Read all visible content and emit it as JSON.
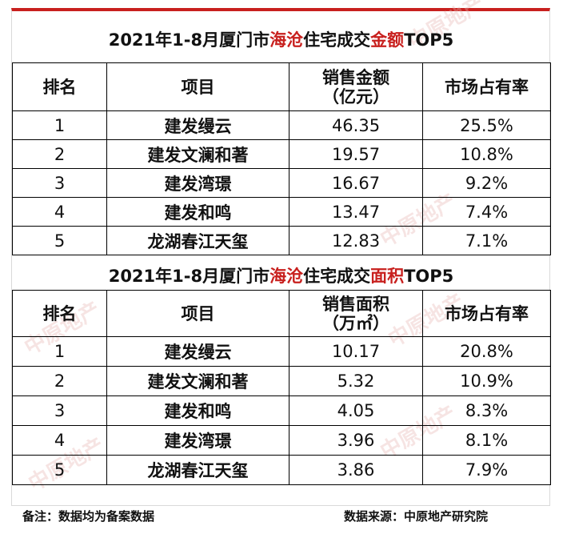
{
  "table1": {
    "title_pre": "2021年1-8月厦门市",
    "title_red1": "海沧",
    "title_mid": "住宅成交",
    "title_red2": "金额",
    "title_post": "TOP5",
    "headers": [
      "排名",
      "项目",
      "销售金额",
      "（亿元）",
      "市场占有率"
    ],
    "rows": [
      {
        "rank": "1",
        "project": "建发缦云",
        "value": "46.35",
        "share": "25.5%"
      },
      {
        "rank": "2",
        "project": "建发文澜和著",
        "value": "19.57",
        "share": "10.8%"
      },
      {
        "rank": "3",
        "project": "建发湾璟",
        "value": "16.67",
        "share": "9.2%"
      },
      {
        "rank": "4",
        "project": "建发和鸣",
        "value": "13.47",
        "share": "7.4%"
      },
      {
        "rank": "5",
        "project": "龙湖春江天玺",
        "value": "12.83",
        "share": "7.1%"
      }
    ]
  },
  "table2": {
    "title_pre": "2021年1-8月厦门市",
    "title_red1": "海沧",
    "title_mid": "住宅成交",
    "title_red2": "面积",
    "title_post": "TOP5",
    "headers": [
      "排名",
      "项目",
      "销售面积",
      "（万㎡）",
      "市场占有率"
    ],
    "rows": [
      {
        "rank": "1",
        "project": "建发缦云",
        "value": "10.17",
        "share": "20.8%"
      },
      {
        "rank": "2",
        "project": "建发文澜和著",
        "value": "5.32",
        "share": "10.9%"
      },
      {
        "rank": "3",
        "project": "建发和鸣",
        "value": "4.05",
        "share": "8.3%"
      },
      {
        "rank": "4",
        "project": "建发湾璟",
        "value": "3.96",
        "share": "8.1%"
      },
      {
        "rank": "5",
        "project": "龙湖春江天玺",
        "value": "3.86",
        "share": "7.9%"
      }
    ]
  },
  "footer": {
    "note": "备注：数据均为备案数据",
    "source": "数据来源：中原地产研究院"
  },
  "watermark": "中原地产",
  "colors": {
    "accent_red": "#c8201e",
    "border": "#000000"
  }
}
